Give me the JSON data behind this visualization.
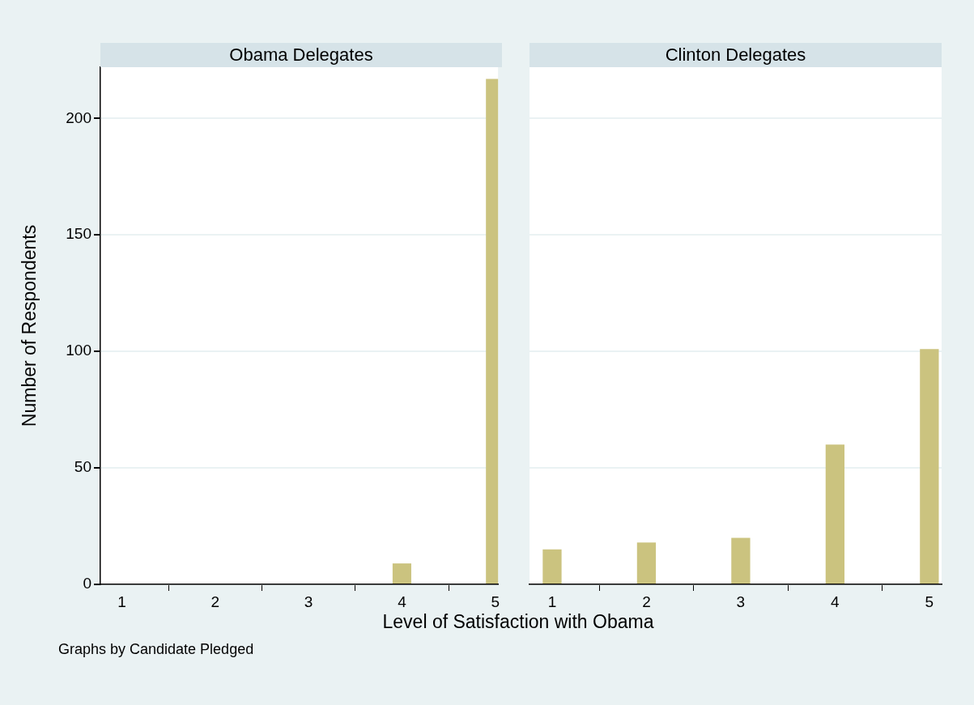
{
  "chart_data": [
    {
      "type": "bar",
      "title": "Obama Delegates",
      "xlabel": "Level of Satisfaction with Obama",
      "ylabel": "Number of Respondents",
      "annotations": [
        "Graphs by Candidate Pledged"
      ],
      "x": [
        1,
        2,
        3,
        4,
        5
      ],
      "values": [
        0,
        0,
        0,
        9,
        217
      ],
      "color": "#cbc37f",
      "xlim": [
        0.77,
        5.03
      ],
      "xticks": [
        1,
        2,
        3,
        4,
        5
      ],
      "ylim": [
        0,
        222
      ],
      "yticks": [
        0,
        50,
        100,
        150,
        200
      ],
      "grid": "y"
    },
    {
      "type": "bar",
      "title": "Clinton Delegates",
      "x": [
        1,
        2,
        3,
        4,
        5
      ],
      "values": [
        15,
        18,
        20,
        60,
        101
      ],
      "color": "#cbc37f",
      "xlim": [
        0.76,
        5.13
      ],
      "xticks": [
        1,
        2,
        3,
        4,
        5
      ],
      "ylim": [
        0,
        222
      ],
      "yticks": [
        0,
        50,
        100,
        150,
        200
      ],
      "grid": "y",
      "tick_labels": "x"
    }
  ]
}
